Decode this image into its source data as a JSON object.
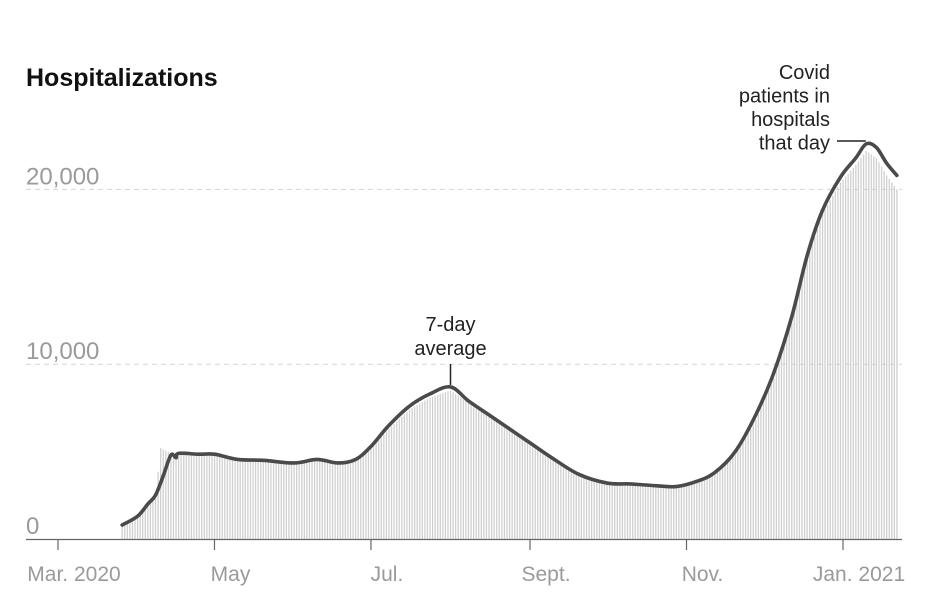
{
  "chart_data": {
    "type": "bar",
    "title": "Hospitalizations",
    "xlabel": "",
    "ylabel": "",
    "ylim": [
      0,
      25000
    ],
    "y_ticks": [
      {
        "value": 0,
        "label": "0"
      },
      {
        "value": 10000,
        "label": "10,000"
      },
      {
        "value": 20000,
        "label": "20,000"
      }
    ],
    "x_ticks": [
      {
        "date": "2020-03-01",
        "label": "Mar. 2020"
      },
      {
        "date": "2020-05-01",
        "label": "May"
      },
      {
        "date": "2020-07-01",
        "label": "Jul."
      },
      {
        "date": "2020-09-01",
        "label": "Sept."
      },
      {
        "date": "2020-11-01",
        "label": "Nov."
      },
      {
        "date": "2021-01-01",
        "label": "Jan. 2021"
      }
    ],
    "x_range": [
      "2020-02-24",
      "2021-01-25"
    ],
    "grid": true,
    "series": [
      {
        "name": "Covid patients in hospitals that day",
        "kind": "bars",
        "color": "#d0d0d0",
        "points": [
          [
            "2020-03-26",
            700
          ],
          [
            "2020-04-01",
            1200
          ],
          [
            "2020-04-05",
            2000
          ],
          [
            "2020-04-08",
            2500
          ],
          [
            "2020-04-10",
            5200
          ],
          [
            "2020-04-14",
            4900
          ],
          [
            "2020-04-19",
            4800
          ],
          [
            "2020-04-25",
            4800
          ],
          [
            "2020-05-01",
            4750
          ],
          [
            "2020-05-10",
            4550
          ],
          [
            "2020-05-20",
            4450
          ],
          [
            "2020-06-01",
            4350
          ],
          [
            "2020-06-10",
            4550
          ],
          [
            "2020-06-18",
            4350
          ],
          [
            "2020-06-25",
            4600
          ],
          [
            "2020-07-01",
            5200
          ],
          [
            "2020-07-08",
            6300
          ],
          [
            "2020-07-16",
            7400
          ],
          [
            "2020-07-24",
            8100
          ],
          [
            "2020-08-01",
            8500
          ],
          [
            "2020-08-08",
            7800
          ],
          [
            "2020-08-16",
            7200
          ],
          [
            "2020-08-24",
            6300
          ],
          [
            "2020-09-01",
            5500
          ],
          [
            "2020-09-10",
            4500
          ],
          [
            "2020-09-20",
            3700
          ],
          [
            "2020-10-01",
            3200
          ],
          [
            "2020-10-10",
            3100
          ],
          [
            "2020-10-20",
            3000
          ],
          [
            "2020-10-28",
            2950
          ],
          [
            "2020-11-05",
            3200
          ],
          [
            "2020-11-12",
            3700
          ],
          [
            "2020-11-20",
            4800
          ],
          [
            "2020-11-28",
            6800
          ],
          [
            "2020-12-05",
            9200
          ],
          [
            "2020-12-12",
            12500
          ],
          [
            "2020-12-18",
            16000
          ],
          [
            "2020-12-24",
            18600
          ],
          [
            "2020-12-31",
            20400
          ],
          [
            "2021-01-06",
            21400
          ],
          [
            "2021-01-10",
            22200
          ],
          [
            "2021-01-14",
            21800
          ],
          [
            "2021-01-18",
            20800
          ],
          [
            "2021-01-22",
            20000
          ]
        ]
      },
      {
        "name": "7-day average",
        "kind": "line",
        "color": "#4a4a4a",
        "points": [
          [
            "2020-03-26",
            800
          ],
          [
            "2020-04-01",
            1300
          ],
          [
            "2020-04-05",
            2000
          ],
          [
            "2020-04-08",
            2500
          ],
          [
            "2020-04-11",
            3600
          ],
          [
            "2020-04-14",
            4800
          ],
          [
            "2020-04-16",
            4650
          ],
          [
            "2020-04-17",
            4900
          ],
          [
            "2020-04-25",
            4850
          ],
          [
            "2020-05-01",
            4850
          ],
          [
            "2020-05-10",
            4550
          ],
          [
            "2020-05-20",
            4500
          ],
          [
            "2020-06-01",
            4350
          ],
          [
            "2020-06-10",
            4550
          ],
          [
            "2020-06-18",
            4350
          ],
          [
            "2020-06-25",
            4550
          ],
          [
            "2020-07-01",
            5300
          ],
          [
            "2020-07-08",
            6500
          ],
          [
            "2020-07-16",
            7600
          ],
          [
            "2020-07-24",
            8300
          ],
          [
            "2020-08-01",
            8700
          ],
          [
            "2020-08-08",
            7900
          ],
          [
            "2020-08-16",
            7100
          ],
          [
            "2020-08-24",
            6300
          ],
          [
            "2020-09-01",
            5500
          ],
          [
            "2020-09-10",
            4600
          ],
          [
            "2020-09-20",
            3700
          ],
          [
            "2020-10-01",
            3200
          ],
          [
            "2020-10-10",
            3150
          ],
          [
            "2020-10-20",
            3050
          ],
          [
            "2020-10-28",
            3000
          ],
          [
            "2020-11-05",
            3300
          ],
          [
            "2020-11-12",
            3800
          ],
          [
            "2020-11-20",
            5000
          ],
          [
            "2020-11-28",
            7100
          ],
          [
            "2020-12-05",
            9500
          ],
          [
            "2020-12-12",
            12700
          ],
          [
            "2020-12-18",
            16200
          ],
          [
            "2020-12-24",
            18800
          ],
          [
            "2020-12-31",
            20700
          ],
          [
            "2021-01-06",
            21800
          ],
          [
            "2021-01-10",
            22600
          ],
          [
            "2021-01-14",
            22400
          ],
          [
            "2021-01-18",
            21500
          ],
          [
            "2021-01-22",
            20800
          ]
        ]
      }
    ],
    "annotations": [
      {
        "lines": [
          "7-day",
          "average"
        ],
        "points_to": [
          "2020-08-01",
          8700
        ]
      },
      {
        "lines": [
          "Covid",
          "patients in",
          "hospitals",
          "that day"
        ],
        "points_to": [
          "2021-01-06",
          21600
        ]
      }
    ]
  }
}
